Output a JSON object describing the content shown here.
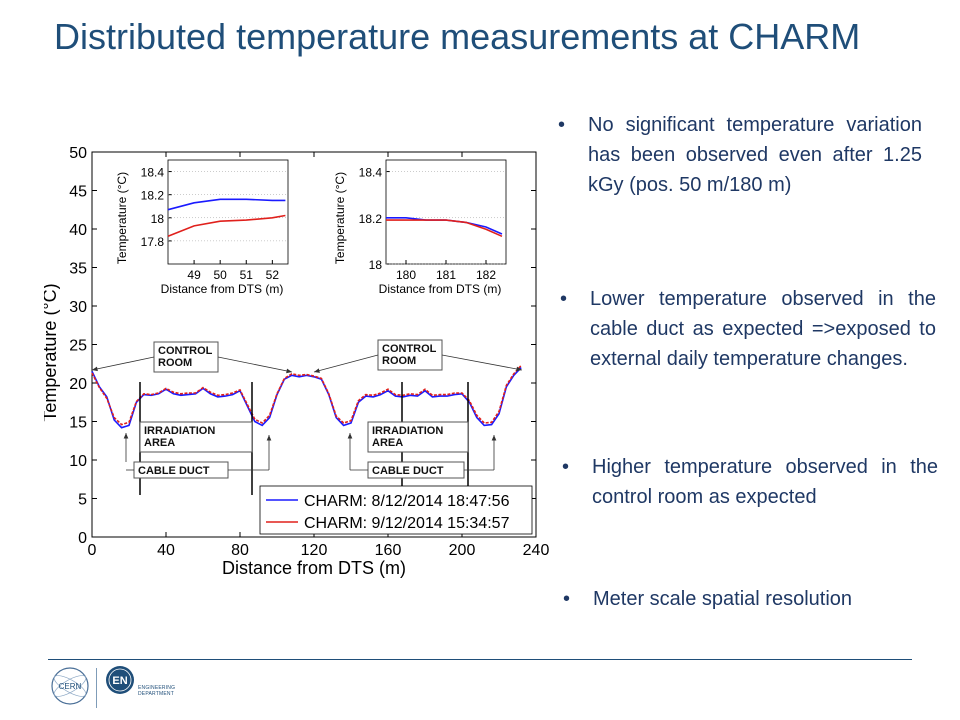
{
  "slide": {
    "title": "Distributed temperature measurements at CHARM"
  },
  "bullets": [
    {
      "symbol": "•",
      "text": "No significant temperature variation has been observed even after 1.25 kGy (pos. 50 m/180 m)"
    },
    {
      "symbol": "•",
      "text": "Lower temperature observed in the cable duct as expected =>exposed to external daily temperature changes."
    },
    {
      "symbol": "•",
      "text": "Higher temperature observed in the control room as expected"
    },
    {
      "symbol": "•",
      "text": "Meter scale spatial resolution"
    }
  ],
  "footer": {
    "logo_cern": "CERN",
    "logo_en": "EN",
    "dept_line1": "ENGINEERING",
    "dept_line2": "DEPARTMENT"
  },
  "colors": {
    "title": "#1f4e79",
    "text": "#1f3864",
    "series_blue": "#1a1aff",
    "series_red": "#e0201c"
  },
  "chart_data": {
    "type": "line",
    "xlabel": "Distance from DTS (m)",
    "ylabel": "Temperature (°C)",
    "xlim": [
      0,
      240
    ],
    "ylim": [
      0,
      50
    ],
    "xticks": [
      "0",
      "40",
      "80",
      "120",
      "160",
      "200",
      "240"
    ],
    "yticks": [
      "0",
      "5",
      "10",
      "15",
      "20",
      "25",
      "30",
      "35",
      "40",
      "45",
      "50"
    ],
    "x": [
      0,
      4,
      8,
      12,
      16,
      20,
      24,
      28,
      32,
      36,
      40,
      44,
      48,
      52,
      56,
      60,
      64,
      68,
      72,
      76,
      80,
      84,
      88,
      92,
      96,
      100,
      104,
      108,
      112,
      116,
      120,
      124,
      128,
      132,
      136,
      140,
      144,
      148,
      152,
      156,
      160,
      164,
      168,
      172,
      176,
      180,
      184,
      188,
      192,
      196,
      200,
      204,
      208,
      212,
      216,
      220,
      224,
      228,
      232
    ],
    "series": [
      {
        "name": "CHARM: 8/12/2014 18:47:56",
        "color": "#1a1aff",
        "values": [
          21.5,
          19.5,
          18.2,
          15.2,
          14.2,
          14.5,
          17.5,
          18.5,
          18.4,
          18.6,
          19.2,
          18.6,
          18.4,
          18.5,
          18.6,
          19.3,
          18.6,
          18.2,
          18.3,
          18.5,
          19.0,
          17.0,
          15.0,
          14.5,
          15.5,
          18.5,
          20.5,
          21.0,
          20.8,
          21.0,
          20.8,
          20.5,
          18.5,
          15.5,
          14.5,
          14.8,
          17.5,
          18.3,
          18.2,
          18.5,
          19.0,
          18.3,
          18.2,
          18.4,
          18.3,
          19.0,
          18.2,
          18.3,
          18.3,
          18.5,
          18.6,
          17.5,
          15.5,
          14.5,
          14.6,
          16.0,
          19.5,
          21.0,
          22.0
        ]
      },
      {
        "name": "CHARM: 9/12/2014 15:34:57",
        "color": "#e0201c",
        "values": [
          21.3,
          19.4,
          18.0,
          15.5,
          14.6,
          14.9,
          17.6,
          18.6,
          18.5,
          18.7,
          19.3,
          18.8,
          18.6,
          18.7,
          18.7,
          19.4,
          18.8,
          18.4,
          18.5,
          18.7,
          19.1,
          17.2,
          15.3,
          14.8,
          15.8,
          18.6,
          20.6,
          21.2,
          21.0,
          21.1,
          20.9,
          20.6,
          18.6,
          15.7,
          14.8,
          15.1,
          17.7,
          18.5,
          18.4,
          18.7,
          19.2,
          18.5,
          18.4,
          18.6,
          18.5,
          19.2,
          18.4,
          18.5,
          18.5,
          18.7,
          18.7,
          17.7,
          15.8,
          14.8,
          14.9,
          16.3,
          19.7,
          21.2,
          22.3
        ]
      }
    ],
    "annotations": [
      "CONTROL ROOM",
      "CONTROL ROOM",
      "IRRADIATION AREA",
      "IRRADIATION AREA",
      "CABLE DUCT",
      "CABLE DUCT"
    ],
    "insets": [
      {
        "xlabel": "Distance from DTS (m)",
        "ylabel": "Temperature (°C)",
        "xlim": [
          48,
          52.6
        ],
        "ylim": [
          17.6,
          18.5
        ],
        "xticks": [
          "49",
          "50",
          "51",
          "52"
        ],
        "yticks": [
          "17.8",
          "18",
          "18.2",
          "18.4"
        ],
        "x": [
          48,
          49,
          50,
          51,
          52,
          52.5
        ],
        "series": [
          {
            "color": "#1a1aff",
            "values": [
              18.07,
              18.13,
              18.16,
              18.16,
              18.15,
              18.15
            ]
          },
          {
            "color": "#e0201c",
            "values": [
              17.84,
              17.93,
              17.97,
              17.98,
              18.0,
              18.02
            ]
          }
        ]
      },
      {
        "xlabel": "Distance from DTS (m)",
        "ylabel": "Temperature (°C)",
        "xlim": [
          179.5,
          182.5
        ],
        "ylim": [
          18.0,
          18.45
        ],
        "xticks": [
          "180",
          "181",
          "182"
        ],
        "yticks": [
          "18",
          "18.2",
          "18.4"
        ],
        "x": [
          179.5,
          180,
          180.5,
          181,
          181.5,
          182,
          182.4
        ],
        "series": [
          {
            "color": "#1a1aff",
            "values": [
              18.2,
              18.2,
              18.19,
              18.19,
              18.18,
              18.16,
              18.13
            ]
          },
          {
            "color": "#e0201c",
            "values": [
              18.19,
              18.19,
              18.19,
              18.19,
              18.18,
              18.15,
              18.12
            ]
          }
        ]
      }
    ],
    "legend": {
      "position": "bottom-right"
    },
    "grid": false
  }
}
